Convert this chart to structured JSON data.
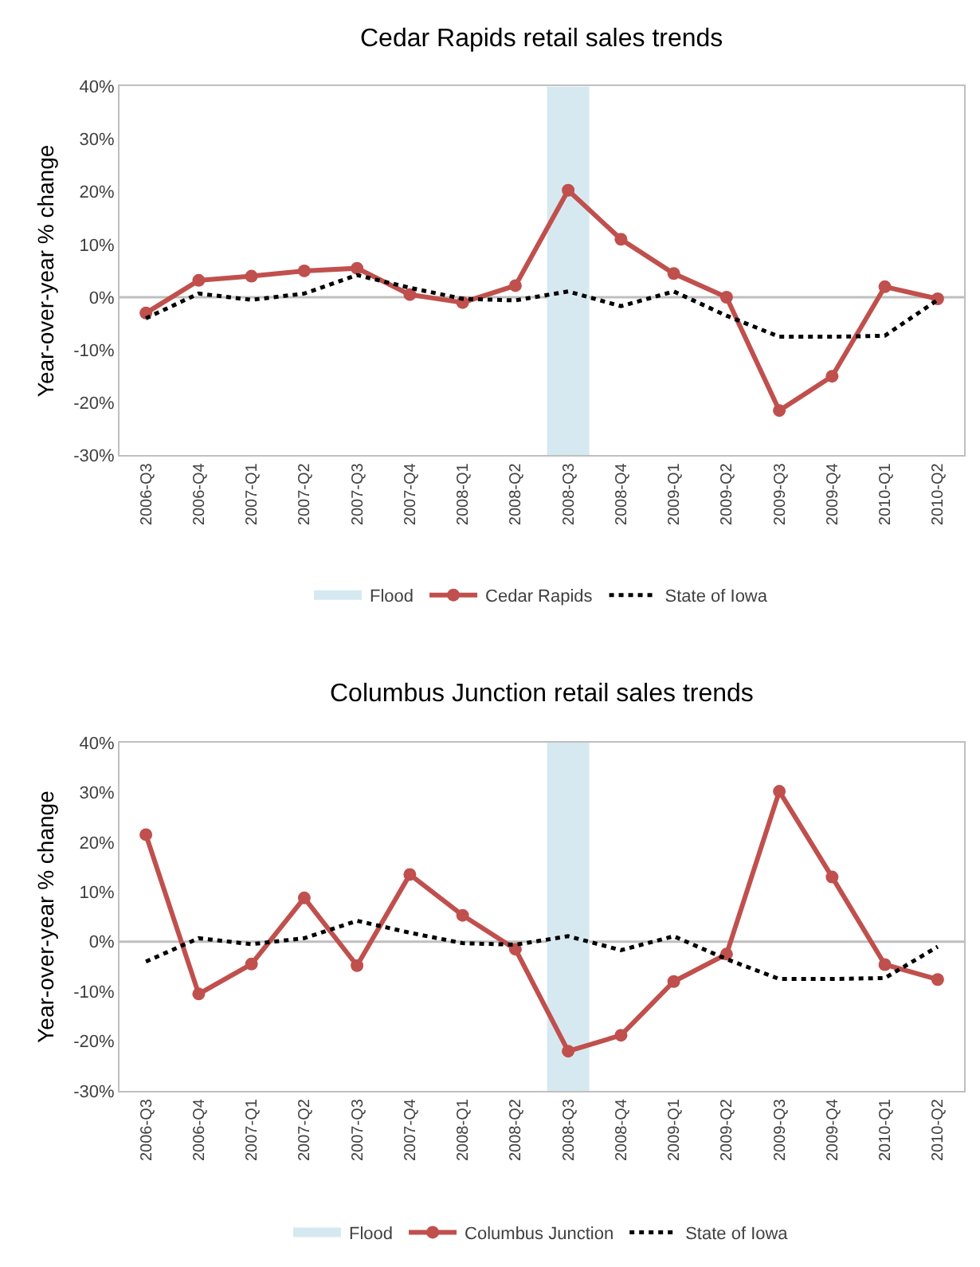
{
  "chart_data": [
    {
      "type": "line",
      "title": "Cedar Rapids retail sales trends",
      "ylabel": "Year-over-year % change",
      "categories": [
        "2006-Q3",
        "2006-Q4",
        "2007-Q1",
        "2007-Q2",
        "2007-Q3",
        "2007-Q4",
        "2008-Q1",
        "2008-Q2",
        "2008-Q3",
        "2008-Q4",
        "2009-Q1",
        "2009-Q2",
        "2009-Q3",
        "2009-Q4",
        "2010-Q1",
        "2010-Q2"
      ],
      "series": [
        {
          "name": "Cedar Rapids",
          "color": "#c0504d",
          "marker": "circle",
          "line_style": "solid",
          "values": [
            -3,
            3.2,
            4,
            5,
            5.5,
            0.5,
            -1,
            2.2,
            20.3,
            11,
            4.5,
            0,
            -21.5,
            -15,
            2,
            -0.3
          ]
        },
        {
          "name": "State of Iowa",
          "color": "#000000",
          "marker": "none",
          "line_style": "dotted",
          "values": [
            -4,
            0.7,
            -0.5,
            0.7,
            4.2,
            1.8,
            -0.3,
            -0.6,
            1.1,
            -1.7,
            1.1,
            -3.5,
            -7.5,
            -7.5,
            -7.3,
            -0.5
          ]
        }
      ],
      "bands": [
        {
          "axis": "x",
          "from": "2008-Q3",
          "to": "2008-Q3",
          "label": "Flood",
          "color": "#d6e9f0"
        }
      ],
      "ref_lines": [
        {
          "axis": "y",
          "value": 0,
          "color": "#bfbfbf"
        }
      ],
      "ylim": [
        -30,
        40
      ],
      "yticks": [
        {
          "value": -30,
          "label": "-30%"
        },
        {
          "value": -20,
          "label": "-20%"
        },
        {
          "value": -10,
          "label": "-10%"
        },
        {
          "value": 0,
          "label": "0%"
        },
        {
          "value": 10,
          "label": "10%"
        },
        {
          "value": 20,
          "label": "20%"
        },
        {
          "value": 30,
          "label": "30%"
        },
        {
          "value": 40,
          "label": "40%"
        }
      ],
      "grid": false,
      "legend": "bottom"
    },
    {
      "type": "line",
      "title": "Columbus Junction retail sales trends",
      "ylabel": "Year-over-year % change",
      "categories": [
        "2006-Q3",
        "2006-Q4",
        "2007-Q1",
        "2007-Q2",
        "2007-Q3",
        "2007-Q4",
        "2008-Q1",
        "2008-Q2",
        "2008-Q3",
        "2008-Q4",
        "2009-Q1",
        "2009-Q2",
        "2009-Q3",
        "2009-Q4",
        "2010-Q1",
        "2010-Q2"
      ],
      "series": [
        {
          "name": "Columbus Junction",
          "color": "#c0504d",
          "marker": "circle",
          "line_style": "solid",
          "values": [
            21.5,
            -10.5,
            -4.5,
            8.8,
            -4.8,
            13.5,
            5.3,
            -1.5,
            -22,
            -18.8,
            -8,
            -2.5,
            30.2,
            13,
            -4.6,
            -7.6
          ]
        },
        {
          "name": "State of Iowa",
          "color": "#000000",
          "marker": "none",
          "line_style": "dotted",
          "values": [
            -4,
            0.7,
            -0.5,
            0.7,
            4.2,
            1.8,
            -0.3,
            -0.6,
            1.1,
            -1.7,
            1.1,
            -3.5,
            -7.5,
            -7.5,
            -7.3,
            -1
          ]
        }
      ],
      "bands": [
        {
          "axis": "x",
          "from": "2008-Q3",
          "to": "2008-Q3",
          "label": "Flood",
          "color": "#d6e9f0"
        }
      ],
      "ref_lines": [
        {
          "axis": "y",
          "value": 0,
          "color": "#bfbfbf"
        }
      ],
      "ylim": [
        -30,
        40
      ],
      "yticks": [
        {
          "value": -30,
          "label": "-30%"
        },
        {
          "value": -20,
          "label": "-20%"
        },
        {
          "value": -10,
          "label": "-10%"
        },
        {
          "value": 0,
          "label": "0%"
        },
        {
          "value": 10,
          "label": "10%"
        },
        {
          "value": 20,
          "label": "20%"
        },
        {
          "value": 30,
          "label": "30%"
        },
        {
          "value": 40,
          "label": "40%"
        }
      ],
      "grid": false,
      "legend": "bottom"
    }
  ]
}
